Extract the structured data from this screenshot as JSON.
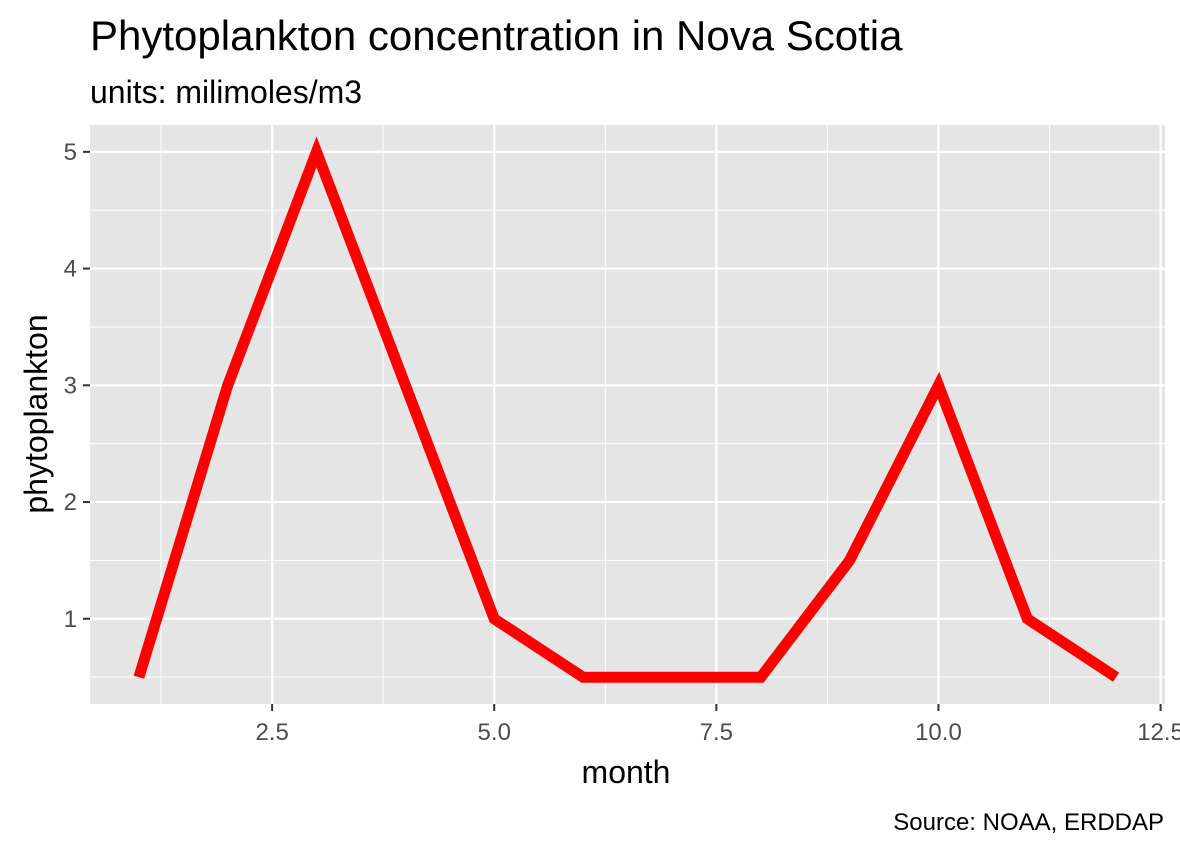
{
  "chart_data": {
    "type": "line",
    "title": "Phytoplankton concentration in Nova Scotia",
    "subtitle": "units: milimoles/m3",
    "xlabel": "month",
    "ylabel": "phytoplankton",
    "caption": "Source: NOAA, ERDDAP",
    "x": [
      1,
      2,
      3,
      4,
      5,
      6,
      7,
      8,
      9,
      10,
      11,
      12
    ],
    "series": [
      {
        "values": [
          0.5,
          3,
          5,
          3,
          1,
          0.5,
          0.5,
          0.5,
          1.5,
          3,
          1,
          0.5
        ]
      }
    ],
    "xlim": [
      0.45,
      12.55
    ],
    "ylim": [
      0.27,
      5.23
    ],
    "x_ticks": [
      2.5,
      5.0,
      7.5,
      10.0,
      12.5
    ],
    "x_tick_labels": [
      "2.5",
      "5.0",
      "7.5",
      "10.0",
      "12.5"
    ],
    "y_ticks": [
      1,
      2,
      3,
      4,
      5
    ],
    "y_tick_labels": [
      "1",
      "2",
      "3",
      "4",
      "5"
    ],
    "line_color": "#ff0000",
    "panel_background": "#e5e5e5",
    "grid_color": "#ffffff",
    "grid": true,
    "legend": "none"
  }
}
